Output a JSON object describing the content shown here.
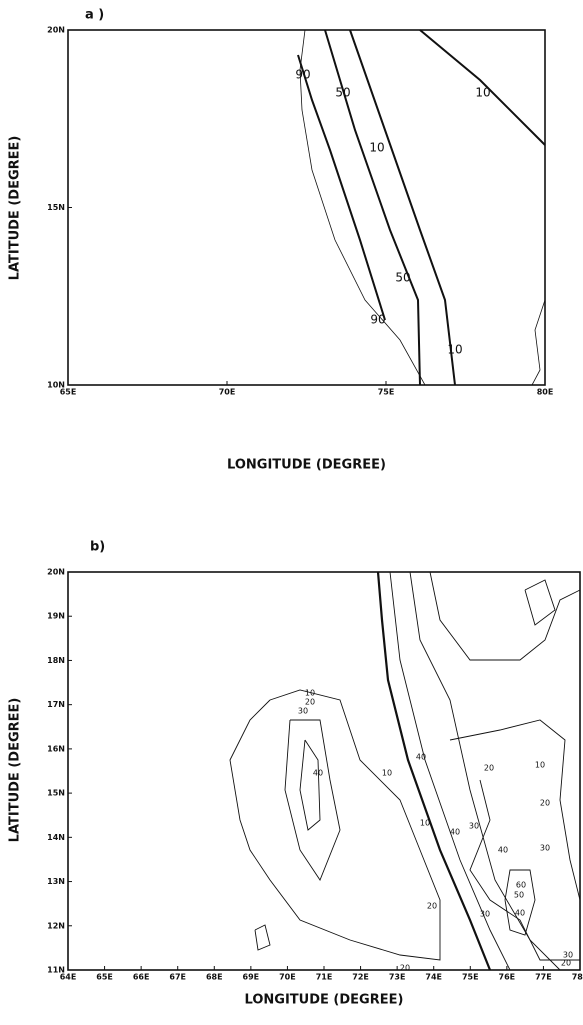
{
  "panels": [
    {
      "label": "a )",
      "xlabel": "LONGITUDE (DEGREE)",
      "ylabel": "LATITUDE (DEGREE)",
      "xticks": [
        "65E",
        "70E",
        "75E",
        "80E"
      ],
      "yticks": [
        "10N",
        "15N",
        "20N"
      ],
      "contour_labels": [
        "90",
        "50",
        "10",
        "10",
        "50",
        "90",
        "10"
      ]
    },
    {
      "label": "b)",
      "xlabel": "LONGITUDE (DEGREE)",
      "ylabel": "LATITUDE (DEGREE)",
      "xticks": [
        "64E",
        "65E",
        "66E",
        "67E",
        "68E",
        "69E",
        "70E",
        "71E",
        "72E",
        "73E",
        "74E",
        "75E",
        "76E",
        "77E",
        "78E"
      ],
      "yticks": [
        "11N",
        "12N",
        "13N",
        "14N",
        "15N",
        "16N",
        "17N",
        "18N",
        "19N",
        "20N"
      ],
      "contour_labels": [
        "10",
        "20",
        "30",
        "40",
        "10",
        "20",
        "20",
        "40",
        "20",
        "10",
        "20",
        "40",
        "30",
        "40",
        "30",
        "10",
        "30",
        "40",
        "60",
        "50",
        "30",
        "20"
      ]
    }
  ]
}
